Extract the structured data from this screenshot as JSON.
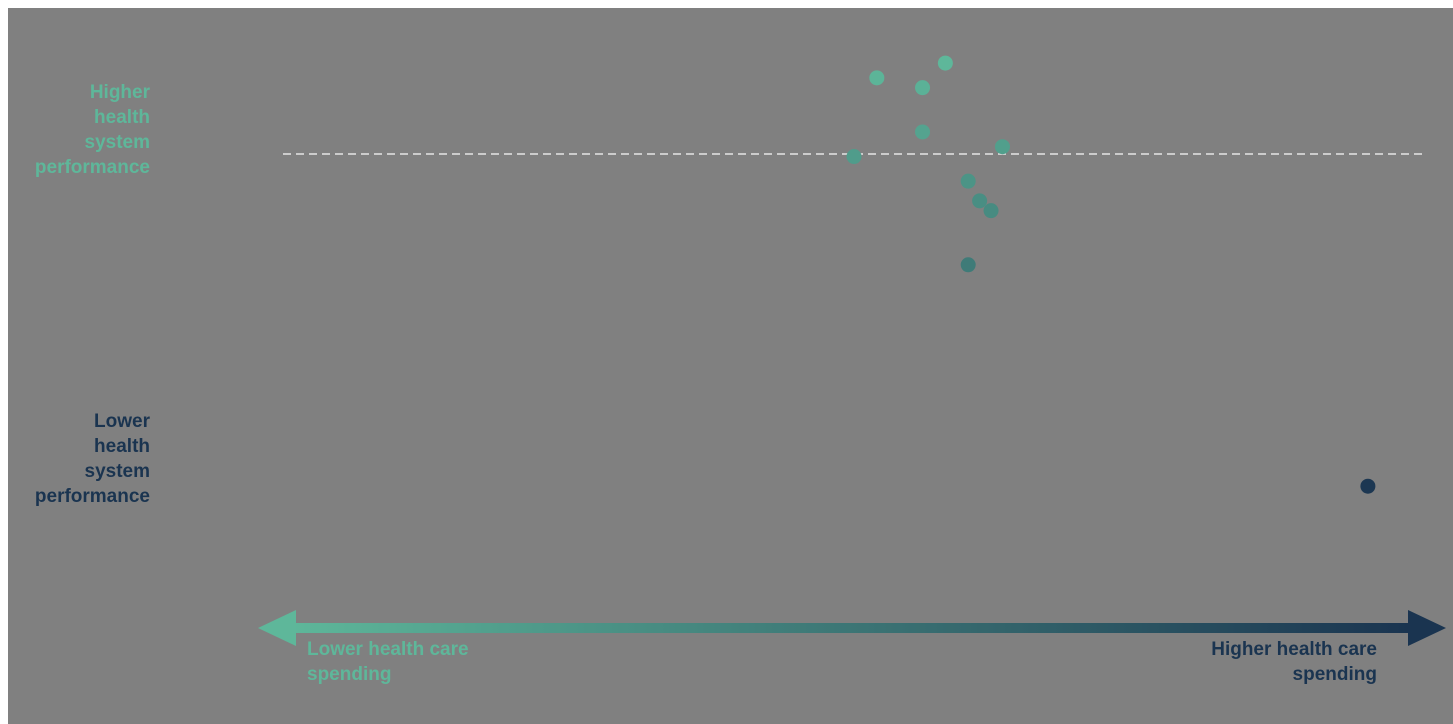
{
  "chart_data": {
    "type": "scatter",
    "title": "",
    "y_axis_labels": {
      "high": "Higher\nhealth\nsystem\nperformance",
      "low": "Lower\nhealth\nsystem\nperformance"
    },
    "x_axis_labels": {
      "low": "Lower health care\nspending",
      "high": "Higher health care\nspending"
    },
    "xlim": [
      0,
      100
    ],
    "ylim": [
      0,
      100
    ],
    "reference_line_y": 83,
    "grid": false,
    "points": [
      {
        "x": 52,
        "y": 98
      },
      {
        "x": 56,
        "y": 96
      },
      {
        "x": 58,
        "y": 101
      },
      {
        "x": 50,
        "y": 82
      },
      {
        "x": 56,
        "y": 87
      },
      {
        "x": 63,
        "y": 84
      },
      {
        "x": 60,
        "y": 77
      },
      {
        "x": 61,
        "y": 73
      },
      {
        "x": 62,
        "y": 71
      },
      {
        "x": 60,
        "y": 60
      },
      {
        "x": 95,
        "y": 15
      }
    ],
    "colors": {
      "high_end": "#5eb79a",
      "low_end": "#1a3450",
      "reference_line": "#e6e6e6"
    }
  }
}
